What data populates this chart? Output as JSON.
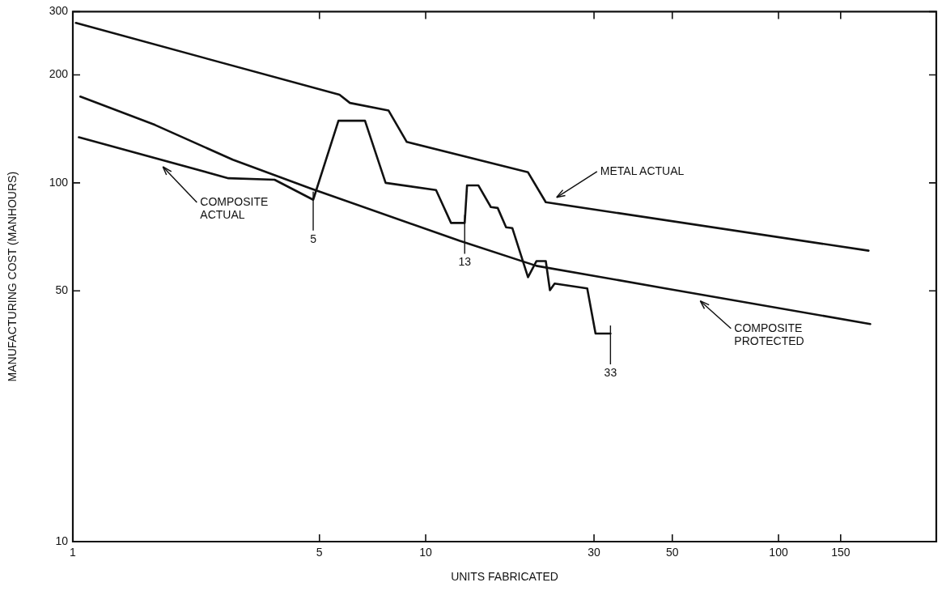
{
  "chart_data": {
    "type": "line",
    "xlabel": "UNITS FABRICATED",
    "ylabel": "MANUFACTURING COST (MANHOURS)",
    "log": "xy",
    "grid": false,
    "legend": false,
    "marker": "none",
    "line_style": "solid",
    "xlim": [
      1,
      280
    ],
    "xticks": [
      1,
      5,
      10,
      30,
      50,
      100,
      150
    ],
    "ylim": [
      10,
      300
    ],
    "yticks": [
      10,
      50,
      100,
      200,
      300
    ],
    "series": [
      {
        "name": "METAL ACTUAL",
        "color": "#111111",
        "x": [
          1.02,
          5.7,
          6.1,
          7.85,
          8.84,
          19.5,
          21.9,
          180
        ],
        "values": [
          279,
          176,
          167,
          159,
          130,
          107,
          88.3,
          64.7
        ]
      },
      {
        "name": "COMPOSITE PROTECTED",
        "color": "#111111",
        "x": [
          1.05,
          1.71,
          2.84,
          4.7,
          12.5,
          20.6,
          47.8,
          182
        ],
        "values": [
          174,
          145,
          116,
          96.6,
          68.9,
          58.7,
          50.8,
          40.4
        ]
      },
      {
        "name": "COMPOSITE ACTUAL",
        "color": "#111111",
        "x": [
          1.04,
          2.76,
          3.73,
          4.8,
          5.66,
          6.73,
          7.7,
          10.7,
          11.8,
          12.9,
          13.1,
          14.1,
          15.3,
          16.0,
          16.9,
          17.6,
          19.5,
          20.6,
          21.9,
          22.5,
          23.2,
          28.7,
          30.3,
          33.4
        ],
        "values": [
          134,
          103,
          102,
          89.7,
          149,
          149,
          100,
          95.5,
          77.3,
          77.3,
          98.4,
          98.4,
          85.6,
          85.1,
          75.2,
          74.8,
          54.6,
          60.5,
          60.5,
          50.2,
          52.4,
          50.8,
          38.0,
          38.0
        ]
      }
    ],
    "annotations": [
      {
        "text": "5",
        "x": 4.8,
        "y": 89.7
      },
      {
        "text": "13",
        "x": 12.9,
        "y": 77.3
      },
      {
        "text": "33",
        "x": 33.4,
        "y": 38.0
      }
    ]
  }
}
